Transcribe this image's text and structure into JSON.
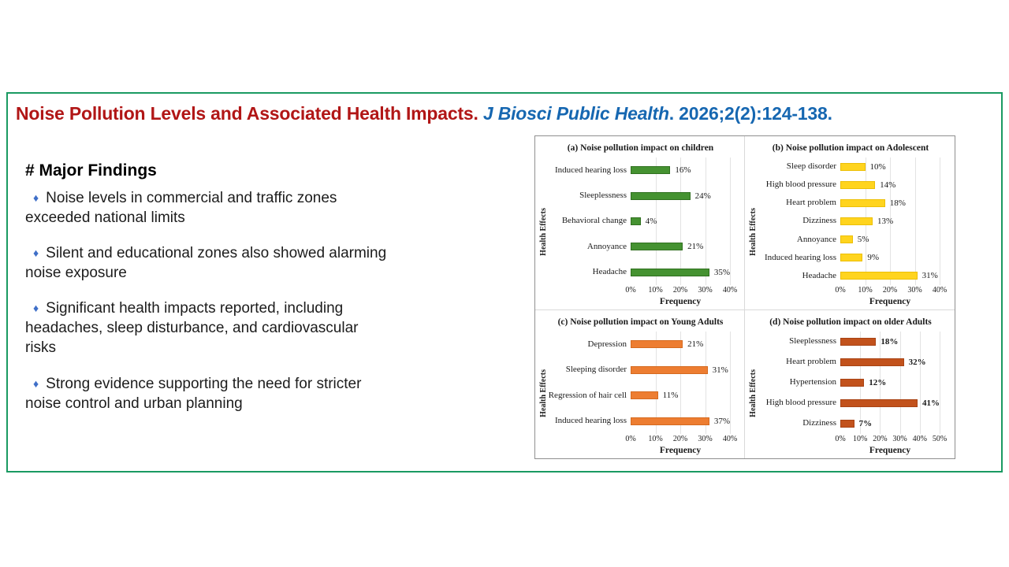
{
  "slide": {
    "title": {
      "part1": "Noise Pollution Levels and Associated Health Impacts.",
      "part2_italic": " J Biosci Public Health",
      "part3": ". 2026;2(2):124-138."
    },
    "findings_heading": "# Major Findings",
    "bullet_char": "♦",
    "findings": [
      "Noise levels in commercial and traffic zones\nexceeded national limits",
      "Silent and educational zones also showed alarming\nnoise exposure",
      "Significant health impacts reported, including\nheadaches, sleep disturbance, and cardiovascular\nrisks",
      "Strong evidence supporting the need for stricter\nnoise control and urban planning"
    ],
    "colors": {
      "slide_border_green": "#1a9a62",
      "title_red": "#b11616",
      "title_blue": "#1667b1",
      "bullet_blue": "#3f6fc8"
    }
  },
  "chart_data": [
    {
      "type": "bar",
      "orientation": "horizontal",
      "title": "(a) Noise pollution impact on children",
      "categories": [
        "Induced hearing loss",
        "Sleeplessness",
        "Behavioral change",
        "Annoyance",
        "Headache"
      ],
      "values": [
        16,
        24,
        4,
        21,
        35
      ],
      "unit": "%",
      "xlabel": "Frequency",
      "ylabel": "Health Effects",
      "xlim": [
        0,
        40
      ],
      "xticks": [
        "0%",
        "10%",
        "20%",
        "30%",
        "40%"
      ],
      "grid": true,
      "legend": "none",
      "bar_color": "#459231",
      "bar_border": "#30701f",
      "bold_value_labels": false
    },
    {
      "type": "bar",
      "orientation": "horizontal",
      "title": "(b) Noise pollution impact on Adolescent",
      "categories": [
        "Sleep disorder",
        "High blood pressure",
        "Heart problem",
        "Dizziness",
        "Annoyance",
        "Induced hearing loss",
        "Headache"
      ],
      "values": [
        10,
        14,
        18,
        13,
        5,
        9,
        31
      ],
      "unit": "%",
      "xlabel": "Frequency",
      "ylabel": "Health Effects",
      "xlim": [
        0,
        40
      ],
      "xticks": [
        "0%",
        "10%",
        "20%",
        "30%",
        "40%"
      ],
      "grid": true,
      "legend": "none",
      "bar_color": "#ffd41e",
      "bar_border": "#ecbf06",
      "bold_value_labels": false
    },
    {
      "type": "bar",
      "orientation": "horizontal",
      "title": "(c) Noise pollution impact on Young Adults",
      "categories": [
        "Depression",
        "Sleeping disorder",
        "Regression of hair cell",
        "Induced hearing loss"
      ],
      "values": [
        21,
        31,
        11,
        37
      ],
      "unit": "%",
      "xlabel": "Frequency",
      "ylabel": "Health Effects",
      "xlim": [
        0,
        40
      ],
      "xticks": [
        "0%",
        "10%",
        "20%",
        "30%",
        "40%"
      ],
      "grid": true,
      "legend": "none",
      "bar_color": "#ed7d31",
      "bar_border": "#d56a1f",
      "bold_value_labels": false
    },
    {
      "type": "bar",
      "orientation": "horizontal",
      "title": "(d) Noise pollution impact on older Adults",
      "categories": [
        "Sleeplessness",
        "Heart problem",
        "Hypertension",
        "High blood pressure",
        "Dizziness"
      ],
      "values": [
        18,
        32,
        12,
        41,
        7
      ],
      "unit": "%",
      "xlabel": "Frequency",
      "ylabel": "Health Effects",
      "xlim": [
        0,
        50
      ],
      "xticks": [
        "0%",
        "10%",
        "20%",
        "30%",
        "40%",
        "50%"
      ],
      "grid": true,
      "legend": "none",
      "bar_color": "#c2521c",
      "bar_border": "#a84314",
      "bold_value_labels": true
    }
  ]
}
